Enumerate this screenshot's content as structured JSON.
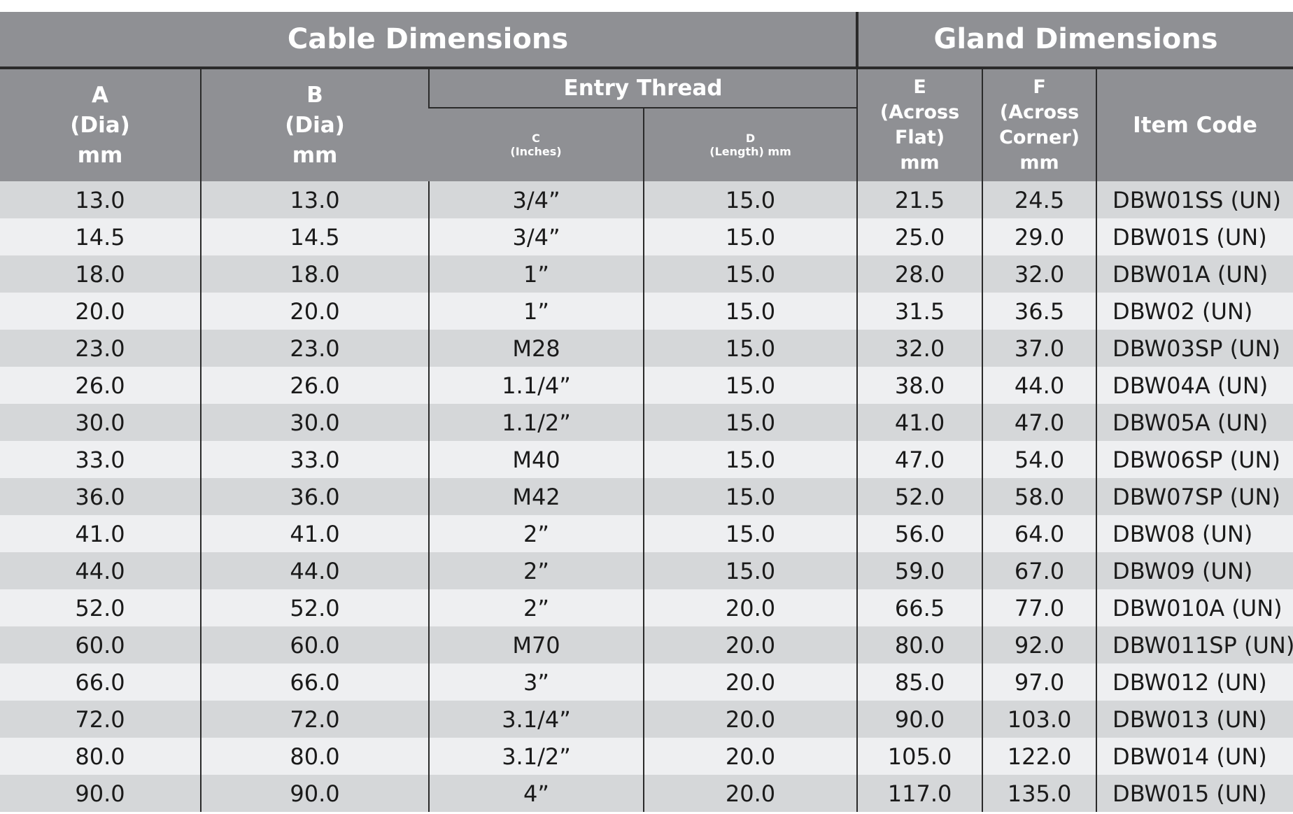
{
  "header": {
    "cable_dimensions": "Cable Dimensions",
    "gland_dimensions": "Gland Dimensions",
    "entry_thread": "Entry Thread"
  },
  "columns": {
    "a": [
      "A",
      "(Dia)",
      "mm"
    ],
    "b": [
      "B",
      "(Dia)",
      "mm"
    ],
    "c": [
      "C",
      "(Inches)"
    ],
    "d": [
      "D",
      "(Length) mm"
    ],
    "e": [
      "E",
      "(Across",
      "Flat)",
      "mm"
    ],
    "f": [
      "F",
      "(Across",
      "Corner)",
      "mm"
    ],
    "item_code": "Item Code"
  },
  "rows": [
    [
      "13.0",
      "13.0",
      "3/4”",
      "15.0",
      "21.5",
      "24.5",
      "DBW01SS (UN)"
    ],
    [
      "14.5",
      "14.5",
      "3/4”",
      "15.0",
      "25.0",
      "29.0",
      "DBW01S (UN)"
    ],
    [
      "18.0",
      "18.0",
      "1”",
      "15.0",
      "28.0",
      "32.0",
      "DBW01A (UN)"
    ],
    [
      "20.0",
      "20.0",
      "1”",
      "15.0",
      "31.5",
      "36.5",
      "DBW02 (UN)"
    ],
    [
      "23.0",
      "23.0",
      "M28",
      "15.0",
      "32.0",
      "37.0",
      "DBW03SP (UN)"
    ],
    [
      "26.0",
      "26.0",
      "1.1/4”",
      "15.0",
      "38.0",
      "44.0",
      "DBW04A (UN)"
    ],
    [
      "30.0",
      "30.0",
      "1.1/2”",
      "15.0",
      "41.0",
      "47.0",
      "DBW05A (UN)"
    ],
    [
      "33.0",
      "33.0",
      "M40",
      "15.0",
      "47.0",
      "54.0",
      "DBW06SP (UN)"
    ],
    [
      "36.0",
      "36.0",
      "M42",
      "15.0",
      "52.0",
      "58.0",
      "DBW07SP (UN)"
    ],
    [
      "41.0",
      "41.0",
      "2”",
      "15.0",
      "56.0",
      "64.0",
      "DBW08 (UN)"
    ],
    [
      "44.0",
      "44.0",
      "2”",
      "15.0",
      "59.0",
      "67.0",
      "DBW09 (UN)"
    ],
    [
      "52.0",
      "52.0",
      "2”",
      "20.0",
      "66.5",
      "77.0",
      "DBW010A (UN)"
    ],
    [
      "60.0",
      "60.0",
      "M70",
      "20.0",
      "80.0",
      "92.0",
      "DBW011SP (UN)"
    ],
    [
      "66.0",
      "66.0",
      "3”",
      "20.0",
      "85.0",
      "97.0",
      "DBW012 (UN)"
    ],
    [
      "72.0",
      "72.0",
      "3.1/4”",
      "20.0",
      "90.0",
      "103.0",
      "DBW013 (UN)"
    ],
    [
      "80.0",
      "80.0",
      "3.1/2”",
      "20.0",
      "105.0",
      "122.0",
      "DBW014 (UN)"
    ],
    [
      "90.0",
      "90.0",
      "4”",
      "20.0",
      "117.0",
      "135.0",
      "DBW015 (UN)"
    ]
  ],
  "colors": {
    "header_bg": "#8f9094",
    "header_text": "#ffffff",
    "row_dark": "#d5d7d9",
    "row_light": "#eeeff1",
    "rule": "#2a2a2a"
  }
}
